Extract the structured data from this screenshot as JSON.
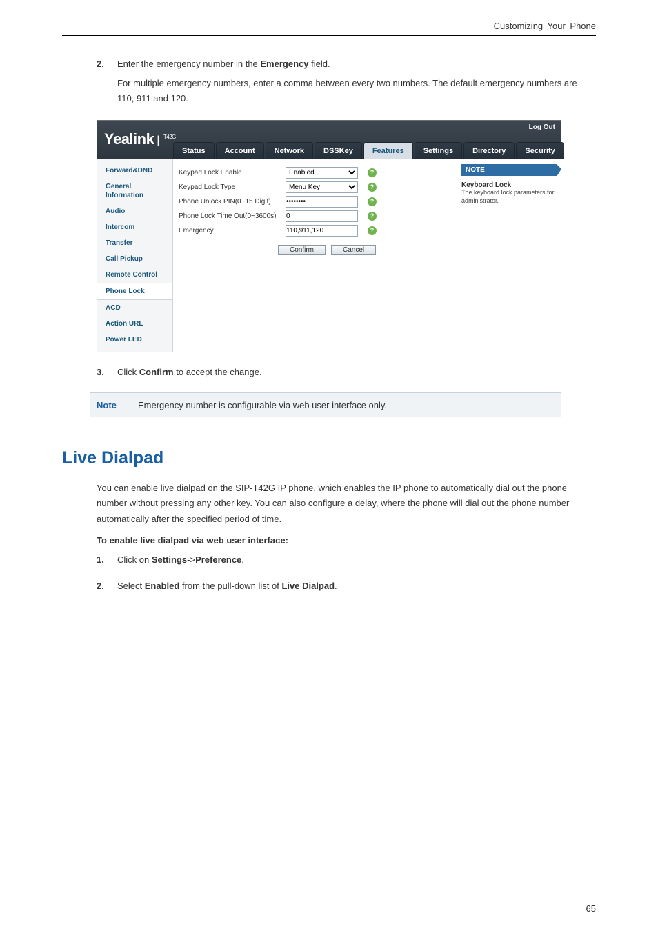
{
  "header_title": "Customizing Your Phone",
  "step2": {
    "num": "2.",
    "line1_pre": "Enter the emergency number in the ",
    "line1_bold": "Emergency",
    "line1_post": " field.",
    "line2": "For multiple emergency numbers, enter a comma between every two numbers. The default emergency numbers are 110, 911 and 120."
  },
  "ui": {
    "logo_main": "Yealink",
    "logo_sep": " | ",
    "logo_model": "T42G",
    "logout": "Log Out",
    "tabs": [
      "Status",
      "Account",
      "Network",
      "DSSKey",
      "Features",
      "Settings",
      "Directory",
      "Security"
    ],
    "tab_active_index": 4,
    "sidebar": [
      "Forward&DND",
      "General Information",
      "Audio",
      "Intercom",
      "Transfer",
      "Call Pickup",
      "Remote Control",
      "Phone Lock",
      "ACD",
      "Action URL",
      "Power LED"
    ],
    "sidebar_selected_index": 7,
    "rows": [
      {
        "label": "Keypad Lock Enable",
        "type": "select",
        "value": "Enabled"
      },
      {
        "label": "Keypad Lock Type",
        "type": "select",
        "value": "Menu Key"
      },
      {
        "label": "Phone Unlock PIN(0~15 Digit)",
        "type": "password",
        "value": "••••••••"
      },
      {
        "label": "Phone Lock Time Out(0~3600s)",
        "type": "text",
        "value": "0"
      },
      {
        "label": "Emergency",
        "type": "text",
        "value": "110,911,120"
      }
    ],
    "confirm": "Confirm",
    "cancel": "Cancel",
    "note_hdr": "NOTE",
    "note_sec_title": "Keyboard Lock",
    "note_sec_body": "The keyboard lock parameters for administrator."
  },
  "step3": {
    "num": "3.",
    "pre": "Click ",
    "bold": "Confirm",
    "post": " to accept the change."
  },
  "notebar_tag": "Note",
  "notebar_msg": "Emergency number is configurable via web user interface only.",
  "section_title": "Live Dialpad",
  "body1": "You can enable live dialpad on the SIP-T42G IP phone, which enables the IP phone to automatically dial out the phone number without pressing any other key. You can also configure a delay, where the phone will dial out the phone number automatically after the specified period of time.",
  "lead": "To enable live dialpad via web user interface:",
  "s1": {
    "num": "1.",
    "pre": "Click on ",
    "b1": "Settings",
    "mid": "->",
    "b2": "Preference",
    "post": "."
  },
  "s2": {
    "num": "2.",
    "pre": "Select ",
    "b1": "Enabled",
    "mid": " from the pull-down list of ",
    "b2": "Live Dialpad",
    "post": "."
  },
  "page_number": "65"
}
